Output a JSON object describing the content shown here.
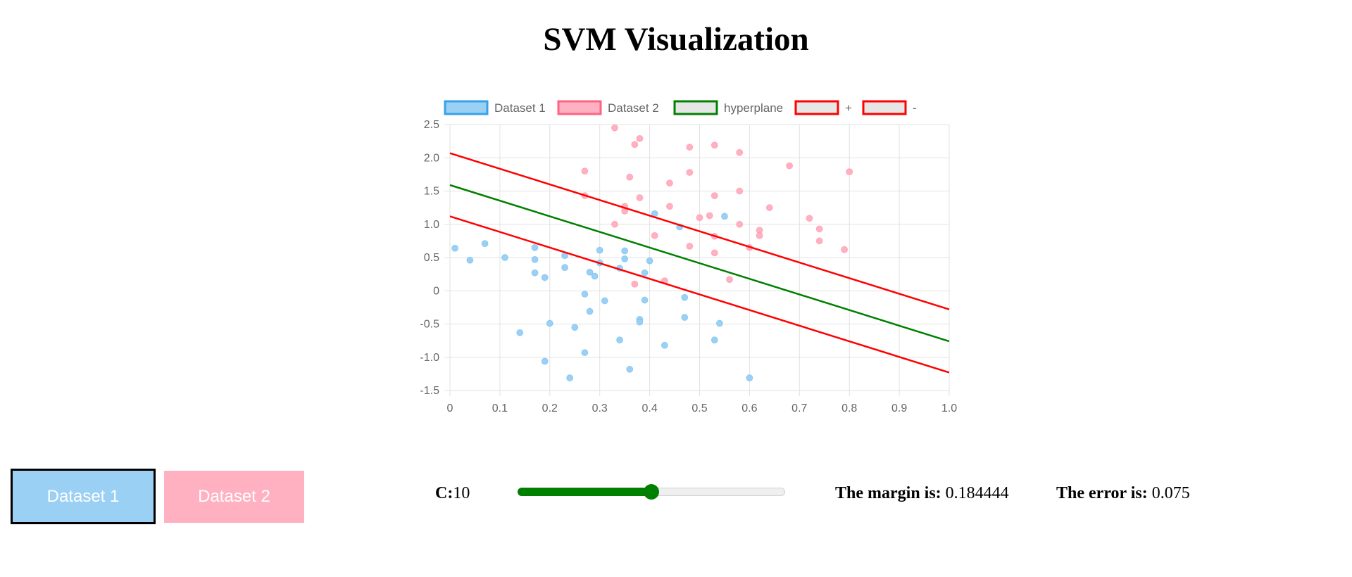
{
  "page": {
    "title": "SVM Visualization"
  },
  "controls": {
    "dataset1_label": "Dataset 1",
    "dataset2_label": "Dataset 2",
    "dataset1_color": "#9bd0f5",
    "dataset2_color": "#ffb1c1",
    "c_label": "C:",
    "c_value": "10",
    "slider_fraction": 0.5,
    "slider_color": "#008000",
    "margin_label": "The margin is:",
    "margin_value": "0.184444",
    "error_label": "The error is:",
    "error_value": "0.075"
  },
  "chart_data": {
    "type": "scatter",
    "title": "",
    "xlabel": "",
    "ylabel": "",
    "xlim": [
      0,
      1
    ],
    "ylim": [
      -1.5,
      2.5
    ],
    "x_ticks": [
      "0",
      "0.1",
      "0.2",
      "0.3",
      "0.4",
      "0.5",
      "0.6",
      "0.7",
      "0.8",
      "0.9",
      "1.0"
    ],
    "x_tick_values": [
      0,
      0.1,
      0.2,
      0.3,
      0.4,
      0.5,
      0.6,
      0.7,
      0.8,
      0.9,
      1.0
    ],
    "y_ticks": [
      "2.5",
      "2.0",
      "1.5",
      "1.0",
      "0.5",
      "0",
      "-0.5",
      "-1.0",
      "-1.5"
    ],
    "y_tick_values": [
      2.5,
      2.0,
      1.5,
      1.0,
      0.5,
      0,
      -0.5,
      -1.0,
      -1.5
    ],
    "grid": true,
    "legend_position": "top",
    "legend": [
      {
        "label": "Dataset 1",
        "fill": "#9bd0f5",
        "stroke": "#36a2eb"
      },
      {
        "label": "Dataset 2",
        "fill": "#ffb1c1",
        "stroke": "#ff6384"
      },
      {
        "label": "hyperplane",
        "fill": "#e6e6e6",
        "stroke": "#008000"
      },
      {
        "label": "+",
        "fill": "#e6e6e6",
        "stroke": "#ff0000"
      },
      {
        "label": "-",
        "fill": "#e6e6e6",
        "stroke": "#ff0000"
      }
    ],
    "series": [
      {
        "name": "Dataset 1",
        "color": "#9bd0f5",
        "points": [
          [
            0.01,
            0.64
          ],
          [
            0.04,
            0.46
          ],
          [
            0.07,
            0.71
          ],
          [
            0.11,
            0.5
          ],
          [
            0.14,
            -0.63
          ],
          [
            0.17,
            0.65
          ],
          [
            0.17,
            0.47
          ],
          [
            0.17,
            0.27
          ],
          [
            0.19,
            -1.06
          ],
          [
            0.19,
            0.2
          ],
          [
            0.2,
            -0.49
          ],
          [
            0.23,
            0.53
          ],
          [
            0.23,
            0.35
          ],
          [
            0.24,
            -1.31
          ],
          [
            0.25,
            -0.55
          ],
          [
            0.27,
            -0.05
          ],
          [
            0.27,
            -0.93
          ],
          [
            0.28,
            -0.31
          ],
          [
            0.28,
            0.28
          ],
          [
            0.29,
            0.22
          ],
          [
            0.3,
            0.42
          ],
          [
            0.3,
            0.61
          ],
          [
            0.31,
            -0.15
          ],
          [
            0.34,
            0.34
          ],
          [
            0.34,
            -0.74
          ],
          [
            0.35,
            0.6
          ],
          [
            0.35,
            0.48
          ],
          [
            0.36,
            -1.18
          ],
          [
            0.38,
            -0.43
          ],
          [
            0.38,
            -0.47
          ],
          [
            0.39,
            -0.14
          ],
          [
            0.39,
            0.27
          ],
          [
            0.4,
            0.45
          ],
          [
            0.41,
            1.16
          ],
          [
            0.43,
            -0.82
          ],
          [
            0.46,
            0.96
          ],
          [
            0.47,
            -0.4
          ],
          [
            0.47,
            -0.1
          ],
          [
            0.53,
            -0.74
          ],
          [
            0.54,
            -0.49
          ],
          [
            0.55,
            1.12
          ],
          [
            0.6,
            -1.31
          ]
        ]
      },
      {
        "name": "Dataset 2",
        "color": "#ffb1c1",
        "points": [
          [
            0.27,
            1.8
          ],
          [
            0.27,
            1.43
          ],
          [
            0.33,
            2.45
          ],
          [
            0.33,
            1.0
          ],
          [
            0.35,
            1.27
          ],
          [
            0.35,
            1.2
          ],
          [
            0.36,
            1.71
          ],
          [
            0.37,
            2.2
          ],
          [
            0.37,
            0.1
          ],
          [
            0.38,
            2.29
          ],
          [
            0.38,
            1.4
          ],
          [
            0.41,
            0.83
          ],
          [
            0.43,
            0.15
          ],
          [
            0.44,
            1.62
          ],
          [
            0.44,
            1.27
          ],
          [
            0.48,
            2.16
          ],
          [
            0.48,
            0.67
          ],
          [
            0.48,
            1.78
          ],
          [
            0.5,
            1.1
          ],
          [
            0.52,
            1.13
          ],
          [
            0.53,
            1.43
          ],
          [
            0.53,
            2.19
          ],
          [
            0.53,
            0.82
          ],
          [
            0.53,
            0.57
          ],
          [
            0.56,
            0.17
          ],
          [
            0.58,
            2.08
          ],
          [
            0.58,
            1.5
          ],
          [
            0.58,
            1.0
          ],
          [
            0.6,
            0.65
          ],
          [
            0.62,
            0.91
          ],
          [
            0.62,
            0.83
          ],
          [
            0.64,
            1.25
          ],
          [
            0.68,
            1.88
          ],
          [
            0.72,
            1.09
          ],
          [
            0.74,
            0.75
          ],
          [
            0.74,
            0.93
          ],
          [
            0.79,
            0.62
          ],
          [
            0.8,
            1.79
          ]
        ]
      }
    ],
    "lines": [
      {
        "name": "hyperplane",
        "color": "#008000",
        "x": [
          0,
          1
        ],
        "y": [
          1.59,
          -0.76
        ]
      },
      {
        "name": "+",
        "color": "#ff0000",
        "x": [
          0,
          1
        ],
        "y": [
          2.07,
          -0.28
        ]
      },
      {
        "name": "-",
        "color": "#ff0000",
        "x": [
          0,
          1
        ],
        "y": [
          1.12,
          -1.23
        ]
      }
    ]
  }
}
